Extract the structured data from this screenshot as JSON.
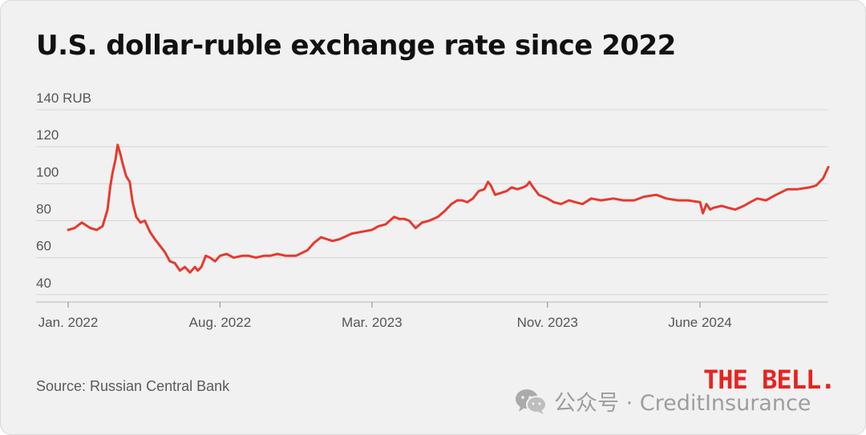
{
  "chart_data": {
    "type": "line",
    "title": "U.S. dollar-ruble exchange rate since 2022",
    "y_ticks": [
      "140 RUB",
      "120",
      "100",
      "80",
      "60",
      "40"
    ],
    "y_tick_values": [
      140,
      120,
      100,
      80,
      60,
      40
    ],
    "ylim": [
      36,
      140
    ],
    "x_ticks": [
      "Jan. 2022",
      "Aug. 2022",
      "Mar. 2023",
      "Nov. 2023",
      "June 2024"
    ],
    "x_tick_dates": [
      "2022-01-01",
      "2022-08-01",
      "2023-03-01",
      "2023-11-01",
      "2024-06-01"
    ],
    "xlim": [
      "2022-01-01",
      "2024-11-27"
    ],
    "grid": true,
    "line_color": "#e63a2e",
    "series": [
      {
        "x": [
          "2022-01-01",
          "2022-01-10",
          "2022-01-20",
          "2022-02-01",
          "2022-02-10",
          "2022-02-18",
          "2022-02-25",
          "2022-03-01",
          "2022-03-04",
          "2022-03-08",
          "2022-03-11",
          "2022-03-15",
          "2022-03-18",
          "2022-03-23",
          "2022-03-28",
          "2022-04-01",
          "2022-04-06",
          "2022-04-12",
          "2022-04-18",
          "2022-04-25",
          "2022-05-02",
          "2022-05-10",
          "2022-05-16",
          "2022-05-23",
          "2022-05-30",
          "2022-06-06",
          "2022-06-13",
          "2022-06-20",
          "2022-06-27",
          "2022-07-01",
          "2022-07-06",
          "2022-07-12",
          "2022-07-18",
          "2022-07-25",
          "2022-08-01",
          "2022-08-10",
          "2022-08-20",
          "2022-09-01",
          "2022-09-10",
          "2022-09-20",
          "2022-10-01",
          "2022-10-10",
          "2022-10-20",
          "2022-11-01",
          "2022-11-15",
          "2022-12-01",
          "2022-12-10",
          "2022-12-20",
          "2022-12-28",
          "2023-01-05",
          "2023-01-15",
          "2023-02-01",
          "2023-02-15",
          "2023-03-01",
          "2023-03-10",
          "2023-03-20",
          "2023-04-01",
          "2023-04-08",
          "2023-04-15",
          "2023-04-22",
          "2023-05-01",
          "2023-05-10",
          "2023-05-20",
          "2023-06-01",
          "2023-06-10",
          "2023-06-20",
          "2023-06-28",
          "2023-07-05",
          "2023-07-12",
          "2023-07-20",
          "2023-07-28",
          "2023-08-05",
          "2023-08-10",
          "2023-08-14",
          "2023-08-20",
          "2023-08-28",
          "2023-09-05",
          "2023-09-12",
          "2023-09-20",
          "2023-09-28",
          "2023-10-03",
          "2023-10-07",
          "2023-10-12",
          "2023-10-20",
          "2023-11-01",
          "2023-11-10",
          "2023-11-20",
          "2023-12-01",
          "2023-12-10",
          "2023-12-20",
          "2024-01-01",
          "2024-01-15",
          "2024-02-01",
          "2024-02-15",
          "2024-03-01",
          "2024-03-15",
          "2024-04-01",
          "2024-04-15",
          "2024-05-01",
          "2024-05-15",
          "2024-06-01",
          "2024-06-05",
          "2024-06-10",
          "2024-06-15",
          "2024-06-20",
          "2024-07-01",
          "2024-07-10",
          "2024-07-20",
          "2024-08-01",
          "2024-08-10",
          "2024-08-20",
          "2024-09-01",
          "2024-09-15",
          "2024-10-01",
          "2024-10-15",
          "2024-11-01",
          "2024-11-10",
          "2024-11-15",
          "2024-11-20",
          "2024-11-27"
        ],
        "y": [
          75,
          76,
          79,
          76,
          75,
          77,
          86,
          99,
          106,
          113,
          121,
          116,
          111,
          104,
          101,
          90,
          82,
          79,
          80,
          74,
          70,
          66,
          63,
          58,
          57,
          53,
          55,
          52,
          55,
          53,
          55,
          61,
          60,
          58,
          61,
          62,
          60,
          61,
          61,
          60,
          61,
          61,
          62,
          61,
          61,
          64,
          68,
          71,
          70,
          69,
          70,
          73,
          74,
          75,
          77,
          78,
          82,
          81,
          81,
          80,
          76,
          79,
          80,
          82,
          85,
          89,
          91,
          91,
          90,
          92,
          96,
          97,
          101,
          99,
          94,
          95,
          96,
          98,
          97,
          98,
          99,
          101,
          98,
          94,
          92,
          90,
          89,
          91,
          90,
          89,
          92,
          91,
          92,
          91,
          91,
          93,
          94,
          92,
          91,
          91,
          90,
          84,
          89,
          86,
          87,
          88,
          87,
          86,
          88,
          90,
          92,
          91,
          94,
          97,
          97,
          98,
          99,
          101,
          103,
          109
        ]
      }
    ]
  },
  "source": "Source: Russian Central Bank",
  "brand": "THE BELL.",
  "watermark": {
    "text": "公众号 · CreditInsurance",
    "icon": "wechat-icon"
  }
}
